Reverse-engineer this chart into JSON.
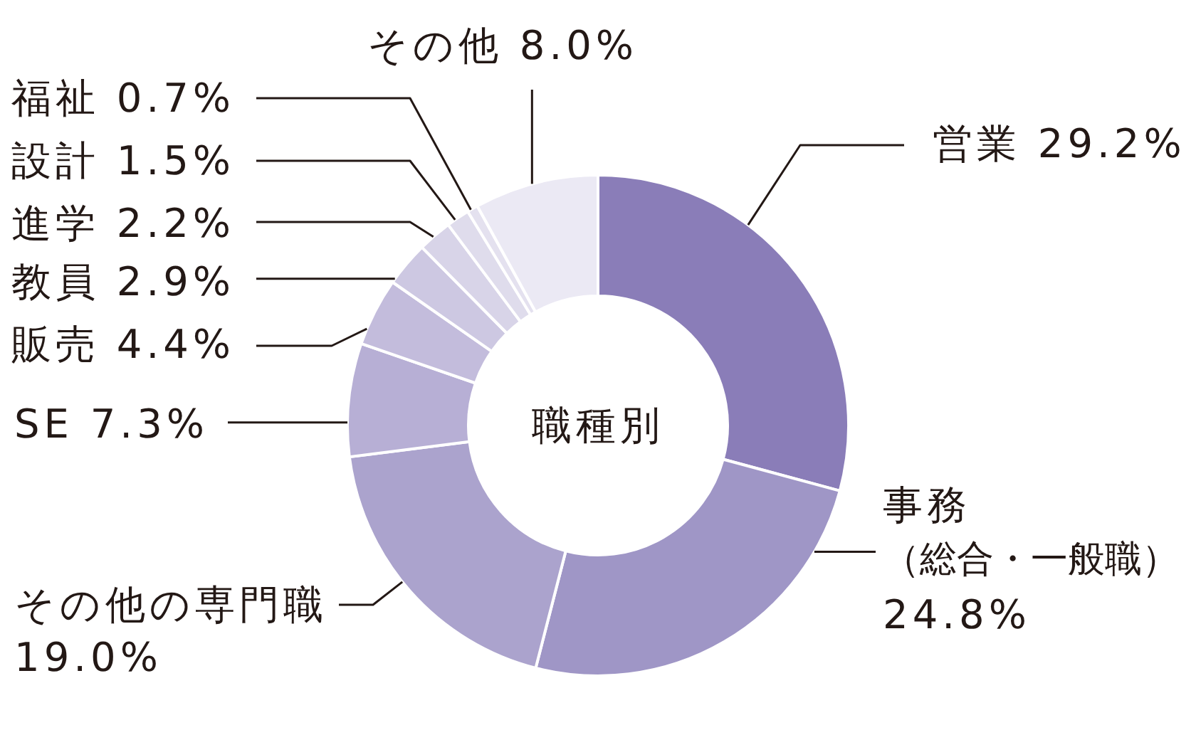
{
  "chart_data": {
    "type": "donut",
    "title": "職種別",
    "categories": [
      "営業",
      "事務（総合・一般職）",
      "その他の専門職",
      "SE",
      "販売",
      "教員",
      "進学",
      "設計",
      "福祉",
      "その他"
    ],
    "values": [
      29.2,
      24.8,
      19.0,
      7.3,
      4.4,
      2.9,
      2.2,
      1.5,
      0.7,
      8.0
    ],
    "value_labels": [
      "29.2%",
      "24.8%",
      "19.0%",
      "7.3%",
      "4.4%",
      "2.9%",
      "2.2%",
      "1.5%",
      "0.7%",
      "8.0%"
    ],
    "colors": [
      "#8a7db8",
      "#9f96c6",
      "#aba3cd",
      "#b7afd5",
      "#c3bcdc",
      "#cdc8e2",
      "#d8d4e8",
      "#dfdcec",
      "#e4e1ef",
      "#ebe9f4"
    ]
  }
}
